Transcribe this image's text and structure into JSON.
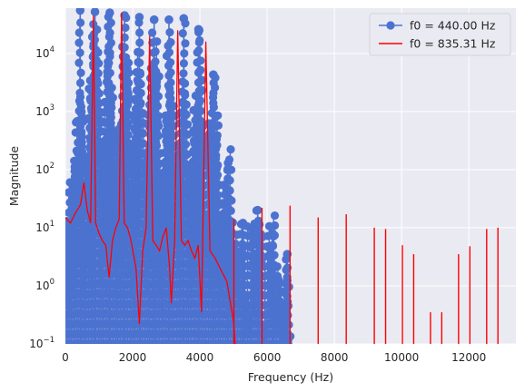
{
  "chart_data": {
    "type": "line",
    "title": "",
    "xlabel": "Frequency (Hz)",
    "ylabel": "Magnitude",
    "xlim": [
      0,
      13400
    ],
    "ylim": [
      0.1,
      60000
    ],
    "yscale": "log",
    "grid": true,
    "legend": "top-right",
    "x_ticks": [
      0,
      2000,
      4000,
      6000,
      8000,
      10000,
      12000
    ],
    "x_tick_labels": [
      "0",
      "2000",
      "4000",
      "6000",
      "8000",
      "10000",
      "12000"
    ],
    "y_ticks": [
      0.1,
      1,
      10,
      100,
      1000,
      10000
    ],
    "y_tick_labels": [
      {
        "base": "10",
        "exp": "−1"
      },
      {
        "base": "10",
        "exp": "0"
      },
      {
        "base": "10",
        "exp": "1"
      },
      {
        "base": "10",
        "exp": "2"
      },
      {
        "base": "10",
        "exp": "3"
      },
      {
        "base": "10",
        "exp": "4"
      }
    ],
    "series": [
      {
        "name": "f0 = 440.00 Hz",
        "style": "stem-markers",
        "color": "#4c72d0",
        "peaks": [
          {
            "x": 440,
            "y": 55000
          },
          {
            "x": 880,
            "y": 52000
          },
          {
            "x": 1320,
            "y": 50000
          },
          {
            "x": 1760,
            "y": 45000
          },
          {
            "x": 2200,
            "y": 42000
          },
          {
            "x": 2640,
            "y": 38000
          },
          {
            "x": 3080,
            "y": 38000
          },
          {
            "x": 3520,
            "y": 40000
          },
          {
            "x": 3960,
            "y": 26000
          },
          {
            "x": 4400,
            "y": 4300
          },
          {
            "x": 4840,
            "y": 130
          },
          {
            "x": 5280,
            "y": 12
          },
          {
            "x": 5720,
            "y": 20
          },
          {
            "x": 6160,
            "y": 8
          },
          {
            "x": 6600,
            "y": 3.5
          }
        ],
        "bin_spacing_hz": 43,
        "envelope": [
          [
            0,
            30
          ],
          [
            100,
            40
          ],
          [
            300,
            60
          ],
          [
            440,
            55000
          ],
          [
            600,
            50
          ],
          [
            880,
            52000
          ],
          [
            1100,
            60
          ],
          [
            1320,
            50000
          ],
          [
            1540,
            60
          ],
          [
            1760,
            45000
          ],
          [
            1980,
            50
          ],
          [
            2200,
            42000
          ],
          [
            2420,
            50
          ],
          [
            2640,
            38000
          ],
          [
            2860,
            40
          ],
          [
            3080,
            38000
          ],
          [
            3300,
            40
          ],
          [
            3520,
            40000
          ],
          [
            3740,
            30
          ],
          [
            3960,
            26000
          ],
          [
            4180,
            25
          ],
          [
            4400,
            4300
          ],
          [
            4620,
            15
          ],
          [
            4840,
            130
          ],
          [
            5060,
            5
          ],
          [
            5280,
            12
          ],
          [
            5500,
            1.5
          ],
          [
            5720,
            20
          ],
          [
            5940,
            0.7
          ],
          [
            6160,
            8
          ],
          [
            6380,
            0.4
          ],
          [
            6600,
            3.5
          ],
          [
            6700,
            0.3
          ]
        ]
      },
      {
        "name": "f0 = 835.31 Hz",
        "style": "line",
        "color": "#ff0000",
        "spectrum": [
          [
            0,
            15
          ],
          [
            150,
            12
          ],
          [
            300,
            18
          ],
          [
            450,
            25
          ],
          [
            550,
            60
          ],
          [
            650,
            20
          ],
          [
            750,
            12
          ],
          [
            835,
            45000
          ],
          [
            900,
            12
          ],
          [
            1000,
            8
          ],
          [
            1100,
            6
          ],
          [
            1200,
            5
          ],
          [
            1300,
            1.4
          ],
          [
            1400,
            6
          ],
          [
            1500,
            10
          ],
          [
            1600,
            14
          ],
          [
            1671,
            50000
          ],
          [
            1750,
            12
          ],
          [
            1850,
            10
          ],
          [
            1950,
            6
          ],
          [
            2100,
            2
          ],
          [
            2200,
            0.22
          ],
          [
            2300,
            4
          ],
          [
            2400,
            10
          ],
          [
            2506,
            20000
          ],
          [
            2600,
            6
          ],
          [
            2700,
            5
          ],
          [
            2800,
            4
          ],
          [
            2900,
            7
          ],
          [
            3000,
            10
          ],
          [
            3100,
            2
          ],
          [
            3150,
            0.5
          ],
          [
            3250,
            6
          ],
          [
            3341,
            25000
          ],
          [
            3450,
            6
          ],
          [
            3550,
            5
          ],
          [
            3650,
            6
          ],
          [
            3750,
            4
          ],
          [
            3850,
            3
          ],
          [
            3950,
            5
          ],
          [
            4050,
            0.35
          ],
          [
            4177,
            16000
          ],
          [
            4300,
            4
          ],
          [
            4450,
            3
          ],
          [
            4600,
            2
          ],
          [
            4800,
            1.2
          ],
          [
            5000,
            0.25
          ],
          [
            5050,
            0.1
          ]
        ],
        "harmonics": [
          {
            "x": 5012,
            "y": 14
          },
          {
            "x": 5847,
            "y": 22
          },
          {
            "x": 6682,
            "y": 24
          },
          {
            "x": 7518,
            "y": 15
          },
          {
            "x": 8353,
            "y": 17
          },
          {
            "x": 9188,
            "y": 10
          },
          {
            "x": 9524,
            "y": 9.5
          },
          {
            "x": 10024,
            "y": 5
          },
          {
            "x": 10359,
            "y": 3.5
          },
          {
            "x": 10859,
            "y": 0.35
          },
          {
            "x": 11194,
            "y": 0.35
          },
          {
            "x": 11694,
            "y": 3.5
          },
          {
            "x": 12030,
            "y": 4.8
          },
          {
            "x": 12530,
            "y": 9.5
          },
          {
            "x": 12865,
            "y": 10
          }
        ]
      }
    ]
  }
}
